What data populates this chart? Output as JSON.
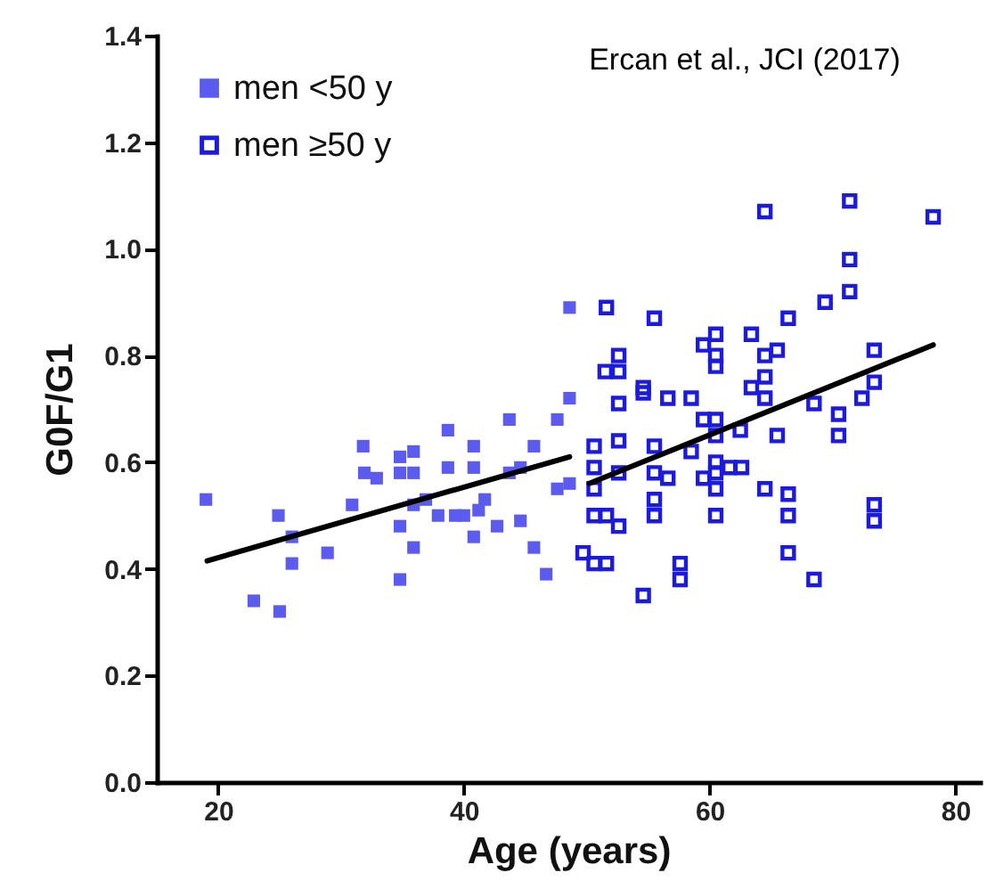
{
  "chart_data": {
    "type": "scatter",
    "xlabel": "Age (years)",
    "ylabel": "G0F/G1",
    "annotations": [
      "Ercan et al., JCI (2017)"
    ],
    "xlim": [
      15,
      82
    ],
    "xticks": [
      20,
      40,
      60,
      80
    ],
    "ylim": [
      0,
      1.4
    ],
    "yticks": [
      {
        "value": 0,
        "label": "0.0"
      },
      0.2,
      0.4,
      0.6,
      0.8,
      {
        "value": 1,
        "label": "1.0"
      },
      1.2,
      1.4
    ],
    "grid": false,
    "legend": "top left",
    "marker": "square",
    "series": [
      {
        "name": "men <50 y",
        "color": "#5b5bf0",
        "x": [
          19.0,
          22.9,
          25.0,
          24.9,
          26.0,
          26.0,
          28.9,
          30.9,
          31.8,
          31.9,
          32.9,
          34.8,
          34.8,
          35.9,
          35.9,
          34.8,
          35.9,
          35.9,
          34.8,
          36.9,
          38.7,
          38.7,
          37.9,
          39.3,
          40.8,
          40.8,
          40.8,
          40.0,
          41.2,
          41.7,
          42.7,
          43.7,
          43.7,
          44.6,
          44.6,
          45.7,
          45.7,
          46.7,
          47.6,
          47.6,
          48.6,
          48.6,
          48.6
        ],
        "values": [
          0.53,
          0.34,
          0.32,
          0.5,
          0.46,
          0.41,
          0.43,
          0.52,
          0.63,
          0.58,
          0.57,
          0.61,
          0.58,
          0.62,
          0.58,
          0.48,
          0.52,
          0.44,
          0.38,
          0.53,
          0.66,
          0.59,
          0.5,
          0.5,
          0.63,
          0.59,
          0.46,
          0.5,
          0.51,
          0.53,
          0.48,
          0.68,
          0.58,
          0.59,
          0.49,
          0.63,
          0.44,
          0.39,
          0.68,
          0.55,
          0.56,
          0.72,
          0.89
        ]
      },
      {
        "name": "men ≥50 y",
        "color": "#1a1ae0",
        "x": [
          51.6,
          55.5,
          52.6,
          52.6,
          51.5,
          52.6,
          54.6,
          54.6,
          56.6,
          58.5,
          59.5,
          59.5,
          50.6,
          50.6,
          50.6,
          52.6,
          52.6,
          55.5,
          55.5,
          56.6,
          58.5,
          59.5,
          50.6,
          51.6,
          52.6,
          55.5,
          55.5,
          49.7,
          50.6,
          51.6,
          54.6,
          57.6,
          57.6,
          64.5,
          71.4,
          78.2,
          71.4,
          71.4,
          69.4,
          66.4,
          60.5,
          60.5,
          60.5,
          63.4,
          64.5,
          65.5,
          63.4,
          64.5,
          64.5,
          73.4,
          73.4,
          72.4,
          68.5,
          70.5,
          70.5,
          65.5,
          60.5,
          60.5,
          62.5,
          60.5,
          60.5,
          61.6,
          62.6,
          60.5,
          64.5,
          66.4,
          60.5,
          66.4,
          73.4,
          73.4,
          66.4,
          68.5
        ],
        "values": [
          0.89,
          0.87,
          0.8,
          0.77,
          0.77,
          0.71,
          0.74,
          0.73,
          0.72,
          0.72,
          0.82,
          0.68,
          0.63,
          0.59,
          0.55,
          0.64,
          0.58,
          0.63,
          0.58,
          0.57,
          0.62,
          0.57,
          0.5,
          0.5,
          0.48,
          0.53,
          0.5,
          0.43,
          0.41,
          0.41,
          0.35,
          0.41,
          0.38,
          1.07,
          1.09,
          1.06,
          0.98,
          0.92,
          0.9,
          0.87,
          0.84,
          0.8,
          0.78,
          0.84,
          0.8,
          0.81,
          0.74,
          0.76,
          0.72,
          0.81,
          0.75,
          0.72,
          0.71,
          0.69,
          0.65,
          0.65,
          0.68,
          0.65,
          0.66,
          0.6,
          0.58,
          0.59,
          0.59,
          0.55,
          0.55,
          0.54,
          0.5,
          0.5,
          0.52,
          0.49,
          0.43,
          0.38
        ]
      },
      {
        "type": "line",
        "color": "#000000",
        "marker": "none",
        "x": [
          19.1,
          48.6
        ],
        "values": [
          0.415,
          0.61
        ]
      },
      {
        "type": "line",
        "color": "#000000",
        "marker": "none",
        "x": [
          50.2,
          78.2
        ],
        "values": [
          0.56,
          0.82
        ]
      }
    ]
  }
}
